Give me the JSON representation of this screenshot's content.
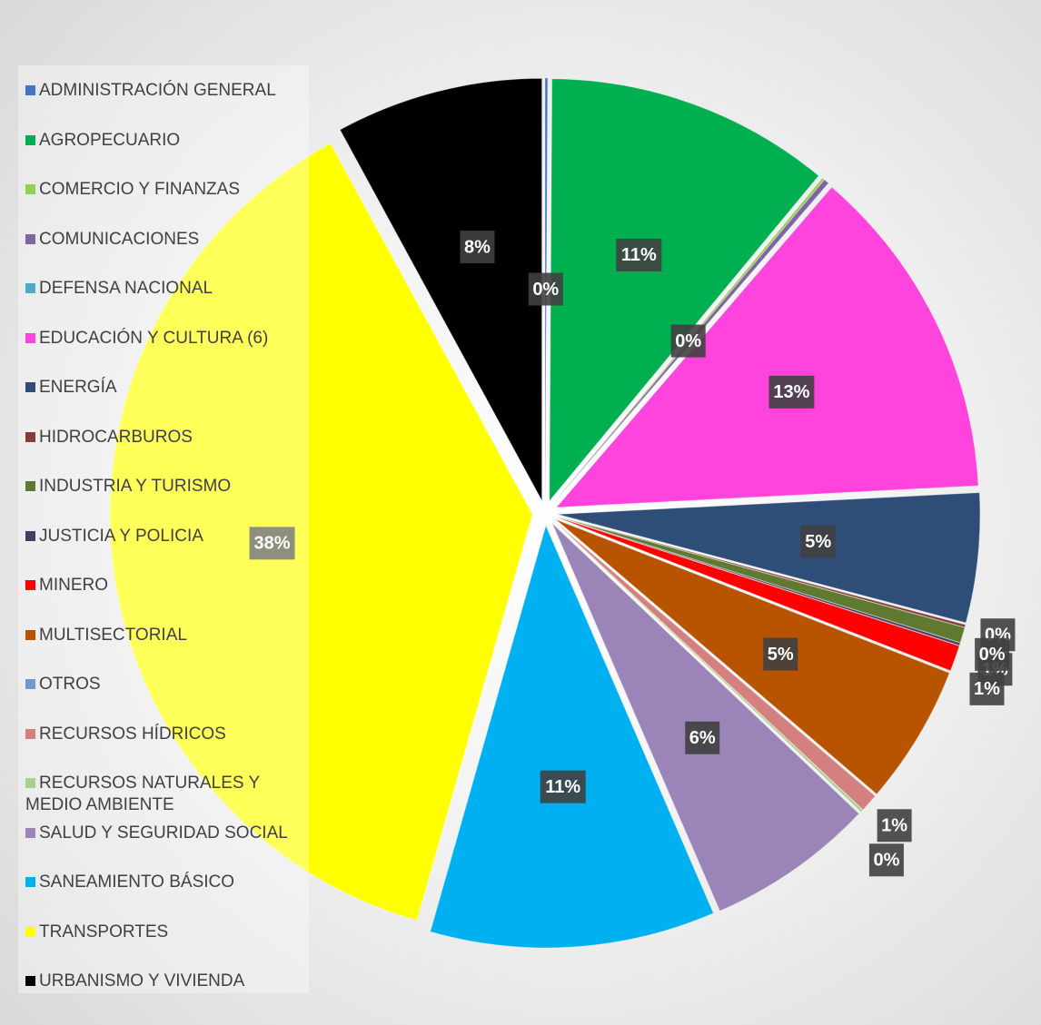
{
  "chart_data": {
    "type": "pie",
    "categories": [
      "ADMINISTRACIÓN GENERAL",
      "AGROPECUARIO",
      "COMERCIO Y FINANZAS",
      "COMUNICACIONES",
      "DEFENSA NACIONAL",
      "EDUCACIÓN Y CULTURA (6)",
      "ENERGÍA",
      "HIDROCARBUROS",
      "INDUSTRIA Y TURISMO",
      "JUSTICIA Y POLICIA",
      "MINERO",
      "MULTISECTORIAL",
      "OTROS",
      "RECURSOS HÍDRICOS",
      "RECURSOS NATURALES Y MEDIO AMBIENTE",
      "SALUD Y SEGURIDAD SOCIAL",
      "SANEAMIENTO BÁSICO",
      "TRANSPORTES",
      "URBANISMO Y VIVIENDA"
    ],
    "values": [
      0.1,
      11,
      0.1,
      0.2,
      0,
      13,
      5,
      0.1,
      0.6,
      0.1,
      1,
      5.4,
      0,
      0.7,
      0.1,
      6.5,
      11,
      38,
      8
    ],
    "value_labels": [
      "0%",
      "11%",
      "0%",
      null,
      null,
      "13%",
      "5%",
      "0%",
      "1%",
      "0%",
      "1%",
      "5%",
      null,
      "1%",
      "0%",
      "6%",
      "11%",
      "38%",
      "8%"
    ],
    "colors": [
      "#4472c4",
      "#00b050",
      "#92d050",
      "#8064a2",
      "#4bacc6",
      "#ff44dd",
      "#2e4e78",
      "#843c39",
      "#5f7a30",
      "#4a3b63",
      "#ff0000",
      "#b85400",
      "#6f98cc",
      "#d58080",
      "#a9d18e",
      "#9b85b8",
      "#00b0f0",
      "#ffff00",
      "#000000"
    ],
    "legend": "left"
  }
}
